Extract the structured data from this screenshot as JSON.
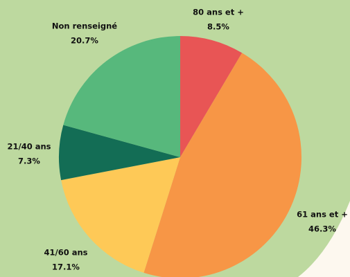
{
  "chart_data": {
    "type": "pie",
    "categories": [
      "80 ans et +",
      "61 ans et +",
      "41/60 ans",
      "21/40 ans",
      "Non renseigné"
    ],
    "values": [
      8.5,
      46.3,
      17.1,
      7.3,
      20.7
    ],
    "value_labels": [
      "8.5%",
      "46.3%",
      "17.1%",
      "7.3%",
      "20.7%"
    ],
    "colors": [
      "#e85555",
      "#f79646",
      "#fec957",
      "#136d55",
      "#57b87c"
    ]
  }
}
